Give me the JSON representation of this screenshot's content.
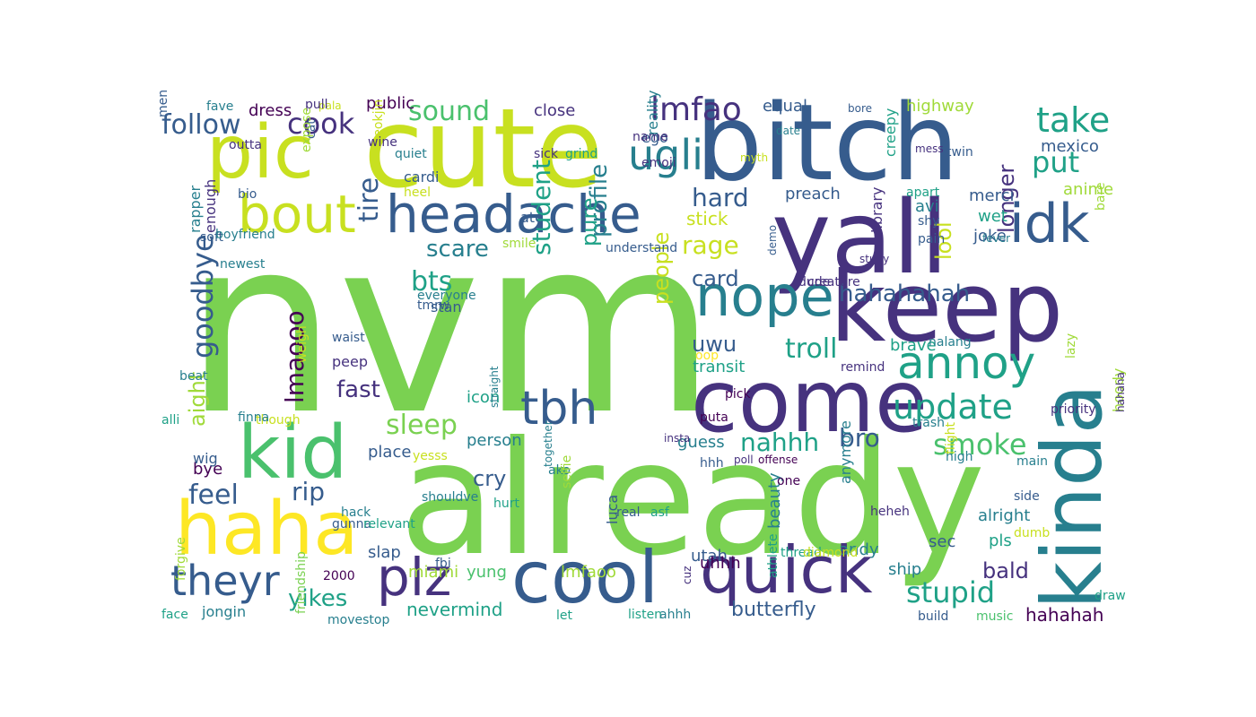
{
  "colors": {
    "background": "#ffffff",
    "palette": [
      "#440154",
      "#46327e",
      "#365c8d",
      "#277f8e",
      "#1fa187",
      "#4ac16d",
      "#7ad151",
      "#a0da39",
      "#c8e020",
      "#fde725"
    ]
  },
  "words": [
    {
      "text": "nvm",
      "color": "#7ad151",
      "vertical": false
    },
    {
      "text": "already",
      "color": "#7ad151",
      "vertical": false
    },
    {
      "text": "cute",
      "color": "#c8e020",
      "vertical": false
    },
    {
      "text": "bitch",
      "color": "#365c8d",
      "vertical": false
    },
    {
      "text": "yall",
      "color": "#46327e",
      "vertical": false
    },
    {
      "text": "keep",
      "color": "#46327e",
      "vertical": false
    },
    {
      "text": "kinda",
      "color": "#277f8e",
      "vertical": true
    },
    {
      "text": "come",
      "color": "#46327e",
      "vertical": false
    },
    {
      "text": "cool",
      "color": "#365c8d",
      "vertical": false
    },
    {
      "text": "haha",
      "color": "#fde725",
      "vertical": false
    },
    {
      "text": "quick",
      "color": "#46327e",
      "vertical": false
    },
    {
      "text": "kid",
      "color": "#4ac16d",
      "vertical": false
    },
    {
      "text": "pic",
      "color": "#c8e020",
      "vertical": false
    },
    {
      "text": "headache",
      "color": "#365c8d",
      "vertical": false
    },
    {
      "text": "nope",
      "color": "#277f8e",
      "vertical": false
    },
    {
      "text": "bout",
      "color": "#c8e020",
      "vertical": false
    },
    {
      "text": "idk",
      "color": "#365c8d",
      "vertical": false
    },
    {
      "text": "plz",
      "color": "#46327e",
      "vertical": false
    },
    {
      "text": "annoy",
      "color": "#1fa187",
      "vertical": false
    },
    {
      "text": "theyr",
      "color": "#365c8d",
      "vertical": false
    },
    {
      "text": "tbh",
      "color": "#365c8d",
      "vertical": false
    },
    {
      "text": "ugli",
      "color": "#277f8e",
      "vertical": false
    },
    {
      "text": "update",
      "color": "#1fa187",
      "vertical": false
    },
    {
      "text": "lmfao",
      "color": "#46327e",
      "vertical": false
    },
    {
      "text": "take",
      "color": "#1fa187",
      "vertical": false
    },
    {
      "text": "put",
      "color": "#1fa187",
      "vertical": false
    },
    {
      "text": "stupid",
      "color": "#1fa187",
      "vertical": false
    },
    {
      "text": "smoke",
      "color": "#4ac16d",
      "vertical": false
    },
    {
      "text": "goodbye",
      "color": "#365c8d",
      "vertical": true
    },
    {
      "text": "follow",
      "color": "#365c8d",
      "vertical": false
    },
    {
      "text": "cook",
      "color": "#46327e",
      "vertical": false
    },
    {
      "text": "sound",
      "color": "#4ac16d",
      "vertical": false
    },
    {
      "text": "lmaooo",
      "color": "#440154",
      "vertical": true
    },
    {
      "text": "sleep",
      "color": "#7ad151",
      "vertical": false
    },
    {
      "text": "troll",
      "color": "#1fa187",
      "vertical": false
    },
    {
      "text": "hahahahah",
      "color": "#365c8d",
      "vertical": false
    },
    {
      "text": "rage",
      "color": "#c8e020",
      "vertical": false
    },
    {
      "text": "scare",
      "color": "#277f8e",
      "vertical": false
    },
    {
      "text": "bts",
      "color": "#1fa187",
      "vertical": false
    },
    {
      "text": "card",
      "color": "#365c8d",
      "vertical": false
    },
    {
      "text": "hard",
      "color": "#365c8d",
      "vertical": false
    },
    {
      "text": "uwu",
      "color": "#365c8d",
      "vertical": false
    },
    {
      "text": "nahhh",
      "color": "#1fa187",
      "vertical": false
    },
    {
      "text": "bro",
      "color": "#365c8d",
      "vertical": false
    },
    {
      "text": "feel",
      "color": "#365c8d",
      "vertical": false
    },
    {
      "text": "rip",
      "color": "#365c8d",
      "vertical": false
    },
    {
      "text": "fast",
      "color": "#46327e",
      "vertical": false
    },
    {
      "text": "yikes",
      "color": "#1fa187",
      "vertical": false
    },
    {
      "text": "lool",
      "color": "#c8e020",
      "vertical": true
    },
    {
      "text": "longer",
      "color": "#46327e",
      "vertical": true
    },
    {
      "text": "tire",
      "color": "#365c8d",
      "vertical": true
    },
    {
      "text": "student",
      "color": "#1fa187",
      "vertical": true
    },
    {
      "text": "profile",
      "color": "#277f8e",
      "vertical": true
    },
    {
      "text": "people",
      "color": "#c8e020",
      "vertical": true
    },
    {
      "text": "pure",
      "color": "#1fa187",
      "vertical": true
    },
    {
      "text": "aight",
      "color": "#a0da39",
      "vertical": true
    },
    {
      "text": "cry",
      "color": "#365c8d",
      "vertical": false
    },
    {
      "text": "bald",
      "color": "#46327e",
      "vertical": false
    },
    {
      "text": "butterfly",
      "color": "#365c8d",
      "vertical": false
    },
    {
      "text": "hahahah",
      "color": "#440154",
      "vertical": false
    },
    {
      "text": "nevermind",
      "color": "#1fa187",
      "vertical": false
    },
    {
      "text": "stick",
      "color": "#c8e020",
      "vertical": false
    },
    {
      "text": "preach",
      "color": "#365c8d",
      "vertical": false
    },
    {
      "text": "equal",
      "color": "#365c8d",
      "vertical": false
    },
    {
      "text": "highway",
      "color": "#a0da39",
      "vertical": false
    },
    {
      "text": "mexico",
      "color": "#365c8d",
      "vertical": false
    },
    {
      "text": "merci",
      "color": "#365c8d",
      "vertical": false
    },
    {
      "text": "anime",
      "color": "#a0da39",
      "vertical": false
    },
    {
      "text": "avi",
      "color": "#277f8e",
      "vertical": false
    },
    {
      "text": "wet",
      "color": "#1fa187",
      "vertical": false
    },
    {
      "text": "joke",
      "color": "#365c8d",
      "vertical": false
    },
    {
      "text": "brave",
      "color": "#1fa187",
      "vertical": false
    },
    {
      "text": "transit",
      "color": "#1fa187",
      "vertical": false
    },
    {
      "text": "guess",
      "color": "#277f8e",
      "vertical": false
    },
    {
      "text": "alright",
      "color": "#277f8e",
      "vertical": false
    },
    {
      "text": "ship",
      "color": "#277f8e",
      "vertical": false
    },
    {
      "text": "andy",
      "color": "#277f8e",
      "vertical": false
    },
    {
      "text": "pls",
      "color": "#1fa187",
      "vertical": false
    },
    {
      "text": "sec",
      "color": "#365c8d",
      "vertical": false
    },
    {
      "text": "utah",
      "color": "#365c8d",
      "vertical": false
    },
    {
      "text": "uhhh",
      "color": "#440154",
      "vertical": false
    },
    {
      "text": "miami",
      "color": "#a0da39",
      "vertical": false
    },
    {
      "text": "lmfaoo",
      "color": "#a0da39",
      "vertical": false
    },
    {
      "text": "yung",
      "color": "#4ac16d",
      "vertical": false
    },
    {
      "text": "slap",
      "color": "#365c8d",
      "vertical": false
    },
    {
      "text": "place",
      "color": "#365c8d",
      "vertical": false
    },
    {
      "text": "person",
      "color": "#277f8e",
      "vertical": false
    },
    {
      "text": "icon",
      "color": "#1fa187",
      "vertical": false
    },
    {
      "text": "bye",
      "color": "#440154",
      "vertical": false
    },
    {
      "text": "wig",
      "color": "#365c8d",
      "vertical": false
    },
    {
      "text": "peep",
      "color": "#46327e",
      "vertical": false
    },
    {
      "text": "jongin",
      "color": "#277f8e",
      "vertical": false
    },
    {
      "text": "stan",
      "color": "#365c8d",
      "vertical": false
    },
    {
      "text": "ego",
      "color": "#365c8d",
      "vertical": false
    },
    {
      "text": "name",
      "color": "#46327e",
      "vertical": false
    },
    {
      "text": "emoji",
      "color": "#46327e",
      "vertical": false
    },
    {
      "text": "close",
      "color": "#46327e",
      "vertical": false
    },
    {
      "text": "public",
      "color": "#440154",
      "vertical": false
    },
    {
      "text": "dress",
      "color": "#440154",
      "vertical": false
    },
    {
      "text": "cardi",
      "color": "#365c8d",
      "vertical": false
    },
    {
      "text": "ate",
      "color": "#365c8d",
      "vertical": false
    },
    {
      "text": "enough",
      "color": "#46327e",
      "vertical": true
    },
    {
      "text": "rapper",
      "color": "#277f8e",
      "vertical": true
    },
    {
      "text": "library",
      "color": "#46327e",
      "vertical": true
    },
    {
      "text": "creepy",
      "color": "#1fa187",
      "vertical": true
    },
    {
      "text": "hoody",
      "color": "#a0da39",
      "vertical": true
    },
    {
      "text": "hahaha",
      "color": "#46327e",
      "vertical": true
    },
    {
      "text": "anymore",
      "color": "#277f8e",
      "vertical": true
    },
    {
      "text": "beauty",
      "color": "#277f8e",
      "vertical": true
    },
    {
      "text": "athlete",
      "color": "#1fa187",
      "vertical": true
    },
    {
      "text": "luca",
      "color": "#365c8d",
      "vertical": true
    },
    {
      "text": "reality",
      "color": "#277f8e",
      "vertical": true
    },
    {
      "text": "men",
      "color": "#365c8d",
      "vertical": true
    },
    {
      "text": "fave",
      "color": "#277f8e",
      "vertical": false
    },
    {
      "text": "cat",
      "color": "#365c8d",
      "vertical": true
    },
    {
      "text": "seokjin",
      "color": "#c8e020",
      "vertical": true
    },
    {
      "text": "outta",
      "color": "#46327e",
      "vertical": false
    },
    {
      "text": "wine",
      "color": "#46327e",
      "vertical": false
    },
    {
      "text": "bio",
      "color": "#365c8d",
      "vertical": false
    },
    {
      "text": "soft",
      "color": "#365c8d",
      "vertical": false
    },
    {
      "text": "boyfriend",
      "color": "#277f8e",
      "vertical": false
    },
    {
      "text": "quiet",
      "color": "#277f8e",
      "vertical": false
    },
    {
      "text": "sick",
      "color": "#46327e",
      "vertical": false
    },
    {
      "text": "grind",
      "color": "#1fa187",
      "vertical": false
    },
    {
      "text": "heel",
      "color": "#c8e020",
      "vertical": false
    },
    {
      "text": "smile",
      "color": "#a0da39",
      "vertical": false
    },
    {
      "text": "understand",
      "color": "#365c8d",
      "vertical": false
    },
    {
      "text": "everyone",
      "color": "#277f8e",
      "vertical": false
    },
    {
      "text": "tmrw",
      "color": "#365c8d",
      "vertical": false
    },
    {
      "text": "waist",
      "color": "#365c8d",
      "vertical": false
    },
    {
      "text": "newest",
      "color": "#277f8e",
      "vertical": false
    },
    {
      "text": "beat",
      "color": "#277f8e",
      "vertical": false
    },
    {
      "text": "alli",
      "color": "#1fa187",
      "vertical": false
    },
    {
      "text": "though",
      "color": "#c8e020",
      "vertical": false
    },
    {
      "text": "finna",
      "color": "#277f8e",
      "vertical": false
    },
    {
      "text": "pala",
      "color": "#c8e020",
      "vertical": false
    },
    {
      "text": "yesss",
      "color": "#c8e020",
      "vertical": false
    },
    {
      "text": "shouldve",
      "color": "#277f8e",
      "vertical": false
    },
    {
      "text": "hack",
      "color": "#277f8e",
      "vertical": false
    },
    {
      "text": "gunna",
      "color": "#365c8d",
      "vertical": false
    },
    {
      "text": "relevant",
      "color": "#1fa187",
      "vertical": false
    },
    {
      "text": "hurt",
      "color": "#1fa187",
      "vertical": false
    },
    {
      "text": "fbi",
      "color": "#365c8d",
      "vertical": false
    },
    {
      "text": "2000",
      "color": "#440154",
      "vertical": false
    },
    {
      "text": "movestop",
      "color": "#277f8e",
      "vertical": false
    },
    {
      "text": "face",
      "color": "#1fa187",
      "vertical": false
    },
    {
      "text": "pull",
      "color": "#46327e",
      "vertical": false
    },
    {
      "text": "bore",
      "color": "#365c8d",
      "vertical": false
    },
    {
      "text": "date",
      "color": "#277f8e",
      "vertical": false
    },
    {
      "text": "mess",
      "color": "#46327e",
      "vertical": false
    },
    {
      "text": "twin",
      "color": "#365c8d",
      "vertical": false
    },
    {
      "text": "apart",
      "color": "#1fa187",
      "vertical": false
    },
    {
      "text": "shy",
      "color": "#365c8d",
      "vertical": false
    },
    {
      "text": "pain",
      "color": "#365c8d",
      "vertical": false
    },
    {
      "text": "fever",
      "color": "#277f8e",
      "vertical": false
    },
    {
      "text": "myth",
      "color": "#c8e020",
      "vertical": false
    },
    {
      "text": "creature",
      "color": "#46327e",
      "vertical": false
    },
    {
      "text": "dude",
      "color": "#46327e",
      "vertical": false
    },
    {
      "text": "study",
      "color": "#46327e",
      "vertical": false
    },
    {
      "text": "oop",
      "color": "#fde725",
      "vertical": false
    },
    {
      "text": "nalang",
      "color": "#277f8e",
      "vertical": false
    },
    {
      "text": "remind",
      "color": "#46327e",
      "vertical": false
    },
    {
      "text": "pick",
      "color": "#440154",
      "vertical": false
    },
    {
      "text": "puta",
      "color": "#440154",
      "vertical": false
    },
    {
      "text": "ako",
      "color": "#277f8e",
      "vertical": false
    },
    {
      "text": "insta",
      "color": "#46327e",
      "vertical": false
    },
    {
      "text": "poll",
      "color": "#46327e",
      "vertical": false
    },
    {
      "text": "offense",
      "color": "#440154",
      "vertical": false
    },
    {
      "text": "hhh",
      "color": "#365c8d",
      "vertical": false
    },
    {
      "text": "one",
      "color": "#440154",
      "vertical": false
    },
    {
      "text": "real",
      "color": "#365c8d",
      "vertical": false
    },
    {
      "text": "asf",
      "color": "#1fa187",
      "vertical": false
    },
    {
      "text": "heheh",
      "color": "#46327e",
      "vertical": false
    },
    {
      "text": "thread",
      "color": "#1fa187",
      "vertical": false
    },
    {
      "text": "diamond",
      "color": "#c8e020",
      "vertical": false
    },
    {
      "text": "let",
      "color": "#1fa187",
      "vertical": false
    },
    {
      "text": "listen",
      "color": "#1fa187",
      "vertical": false
    },
    {
      "text": "ahhh",
      "color": "#277f8e",
      "vertical": false
    },
    {
      "text": "build",
      "color": "#365c8d",
      "vertical": false
    },
    {
      "text": "music",
      "color": "#4ac16d",
      "vertical": false
    },
    {
      "text": "priority",
      "color": "#46327e",
      "vertical": false
    },
    {
      "text": "trash",
      "color": "#277f8e",
      "vertical": false
    },
    {
      "text": "high",
      "color": "#277f8e",
      "vertical": false
    },
    {
      "text": "main",
      "color": "#277f8e",
      "vertical": false
    },
    {
      "text": "side",
      "color": "#365c8d",
      "vertical": false
    },
    {
      "text": "dumb",
      "color": "#c8e020",
      "vertical": false
    },
    {
      "text": "draw",
      "color": "#1fa187",
      "vertical": false
    },
    {
      "text": "lazy",
      "color": "#a0da39",
      "vertical": true
    },
    {
      "text": "expose",
      "color": "#a0da39",
      "vertical": true
    },
    {
      "text": "weigh",
      "color": "#c8e020",
      "vertical": true
    },
    {
      "text": "straight",
      "color": "#277f8e",
      "vertical": true
    },
    {
      "text": "together",
      "color": "#277f8e",
      "vertical": true
    },
    {
      "text": "selfie",
      "color": "#a0da39",
      "vertical": true
    },
    {
      "text": "cuz",
      "color": "#46327e",
      "vertical": true
    },
    {
      "text": "friendship",
      "color": "#7ad151",
      "vertical": true
    },
    {
      "text": "forgive",
      "color": "#a0da39",
      "vertical": true
    },
    {
      "text": "flight",
      "color": "#c8e020",
      "vertical": true
    },
    {
      "text": "bare",
      "color": "#a0da39",
      "vertical": true
    },
    {
      "text": "demo",
      "color": "#365c8d",
      "vertical": true
    }
  ]
}
